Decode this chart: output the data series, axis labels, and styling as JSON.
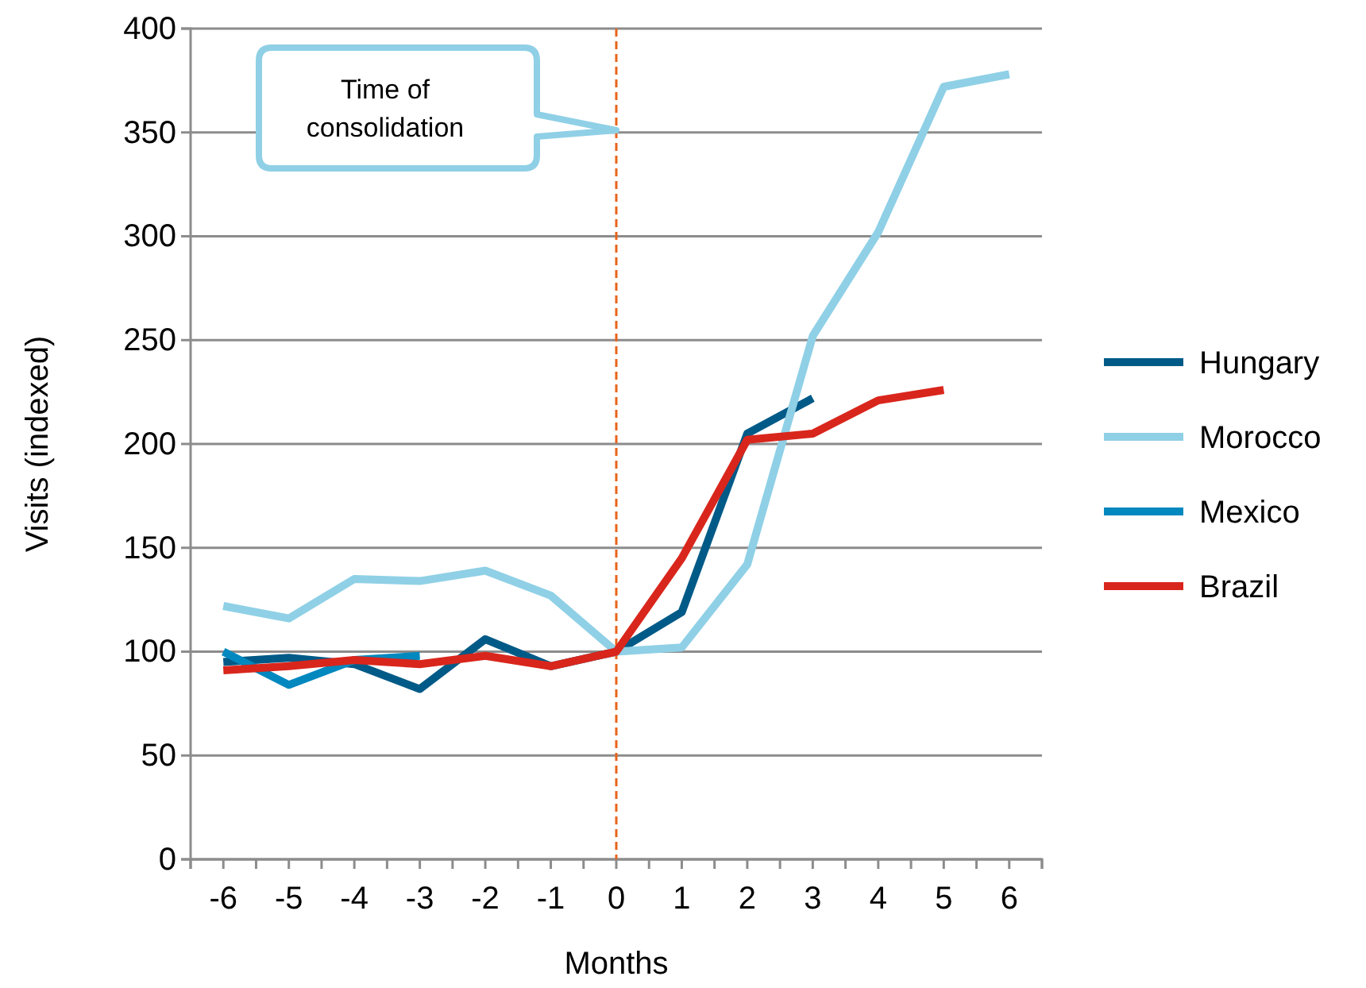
{
  "chart_data": {
    "type": "line",
    "xlabel": "Months",
    "ylabel": "Visits (indexed)",
    "x": [
      -6,
      -5,
      -4,
      -3,
      -2,
      -1,
      0,
      1,
      2,
      3,
      4,
      5,
      6
    ],
    "series": [
      {
        "name": "Hungary",
        "color": "#005a87",
        "values": [
          95,
          97,
          94,
          82,
          106,
          93,
          100,
          119,
          205,
          222,
          null,
          null,
          null
        ]
      },
      {
        "name": "Morocco",
        "color": "#8fd0e6",
        "values": [
          122,
          116,
          135,
          134,
          139,
          127,
          100,
          102,
          142,
          252,
          302,
          372,
          378
        ]
      },
      {
        "name": "Mexico",
        "color": "#0088bf",
        "values": [
          100,
          84,
          96,
          98,
          null,
          null,
          null,
          null,
          null,
          null,
          null,
          null,
          null
        ]
      },
      {
        "name": "Brazil",
        "color": "#d9261c",
        "values": [
          91,
          93,
          96,
          94,
          98,
          93,
          100,
          145,
          202,
          205,
          221,
          226,
          null
        ]
      }
    ],
    "xlim": [
      -6.5,
      6.5
    ],
    "xticks": [
      -6,
      -5,
      -4,
      -3,
      -2,
      -1,
      0,
      1,
      2,
      3,
      4,
      5,
      6,
      {
        "value": -6.5,
        "label": null
      },
      {
        "value": -5.5,
        "label": null
      },
      {
        "value": -4.5,
        "label": null
      },
      {
        "value": -3.5,
        "label": null
      },
      {
        "value": -2.5,
        "label": null
      },
      {
        "value": -1.5,
        "label": null
      },
      {
        "value": -0.5,
        "label": null
      },
      {
        "value": 0.5,
        "label": null
      },
      {
        "value": 1.5,
        "label": null
      },
      {
        "value": 2.5,
        "label": null
      },
      {
        "value": 3.5,
        "label": null
      },
      {
        "value": 4.5,
        "label": null
      },
      {
        "value": 5.5,
        "label": null
      },
      {
        "value": 6.5,
        "label": null
      }
    ],
    "ylim": [
      0,
      400
    ],
    "yticks": [
      0,
      50,
      100,
      150,
      200,
      250,
      300,
      350,
      400
    ],
    "grid": "y",
    "legend": "right",
    "line_style": "solid",
    "marker": "none",
    "ref_lines": [
      {
        "axis": "x",
        "value": 0,
        "color": "#e8641b",
        "line_style": "dashed"
      }
    ],
    "annotations": [
      "Time of\nconsolidation"
    ]
  }
}
